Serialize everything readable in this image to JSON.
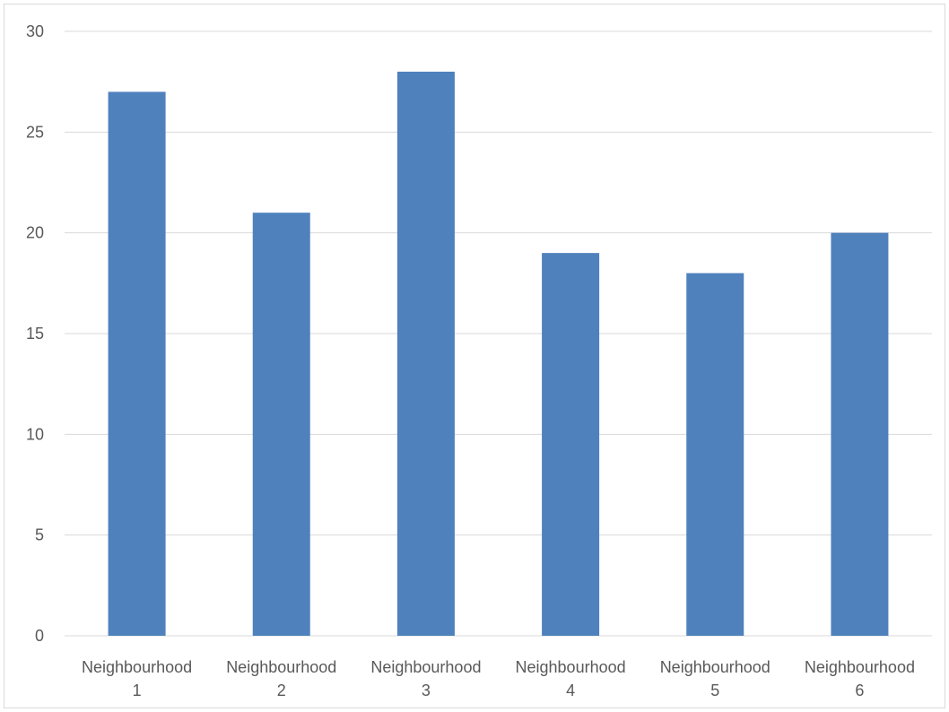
{
  "chart_data": {
    "type": "bar",
    "categories": [
      [
        "Neighbourhood",
        "1"
      ],
      [
        "Neighbourhood",
        "2"
      ],
      [
        "Neighbourhood",
        "3"
      ],
      [
        "Neighbourhood",
        "4"
      ],
      [
        "Neighbourhood",
        "5"
      ],
      [
        "Neighbourhood",
        "6"
      ]
    ],
    "values": [
      27,
      21,
      28,
      19,
      18,
      20
    ],
    "ylim": [
      0,
      30
    ],
    "yticks": [
      0,
      5,
      10,
      15,
      20,
      25,
      30
    ],
    "grid": true,
    "legend": "none",
    "bar_color": "#4f81bd",
    "grid_color": "#d9d9d9",
    "text_color": "#595959"
  }
}
